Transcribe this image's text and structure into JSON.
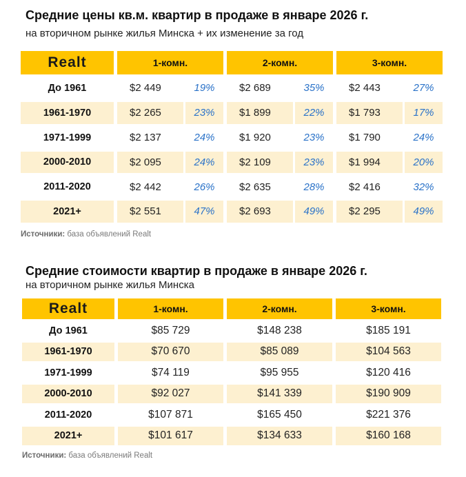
{
  "colors": {
    "accent": "#ffc400",
    "row_alt": "#fdf0d0",
    "percent": "#2a72c8"
  },
  "chart_data": [
    {
      "type": "table",
      "title": "Средние цены кв.м. квартир в продаже в январе 2026 г.",
      "subtitle": "на вторичном рынке жилья Минска + их изменение за год",
      "logo": "Realt",
      "columns": [
        "1-комн.",
        "2-комн.",
        "3-комн."
      ],
      "rows": [
        {
          "label": "До 1961",
          "values": [
            [
              "$2 449",
              "19%"
            ],
            [
              "$2 689",
              "35%"
            ],
            [
              "$2 443",
              "27%"
            ]
          ]
        },
        {
          "label": "1961-1970",
          "values": [
            [
              "$2 265",
              "23%"
            ],
            [
              "$1 899",
              "22%"
            ],
            [
              "$1 793",
              "17%"
            ]
          ]
        },
        {
          "label": "1971-1999",
          "values": [
            [
              "$2 137",
              "24%"
            ],
            [
              "$1 920",
              "23%"
            ],
            [
              "$1 790",
              "24%"
            ]
          ]
        },
        {
          "label": "2000-2010",
          "values": [
            [
              "$2 095",
              "24%"
            ],
            [
              "$2 109",
              "23%"
            ],
            [
              "$1 994",
              "20%"
            ]
          ]
        },
        {
          "label": "2011-2020",
          "values": [
            [
              "$2 442",
              "26%"
            ],
            [
              "$2 635",
              "28%"
            ],
            [
              "$2 416",
              "32%"
            ]
          ]
        },
        {
          "label": "2021+",
          "values": [
            [
              "$2 551",
              "47%"
            ],
            [
              "$2 693",
              "49%"
            ],
            [
              "$2 295",
              "49%"
            ]
          ]
        }
      ],
      "source_label": "Источники:",
      "source_text": " база объявлений Realt"
    },
    {
      "type": "table",
      "title": "Средние стоимости квартир в продаже в январе 2026 г.",
      "subtitle": "на вторичном рынке жилья Минска",
      "logo": "Realt",
      "columns": [
        "1-комн.",
        "2-комн.",
        "3-комн."
      ],
      "rows": [
        {
          "label": "До 1961",
          "values": [
            "$85 729",
            "$148 238",
            "$185 191"
          ]
        },
        {
          "label": "1961-1970",
          "values": [
            "$70 670",
            "$85 089",
            "$104 563"
          ]
        },
        {
          "label": "1971-1999",
          "values": [
            "$74 119",
            "$95 955",
            "$120 416"
          ]
        },
        {
          "label": "2000-2010",
          "values": [
            "$92 027",
            "$141 339",
            "$190 909"
          ]
        },
        {
          "label": "2011-2020",
          "values": [
            "$107 871",
            "$165 450",
            "$221 376"
          ]
        },
        {
          "label": "2021+",
          "values": [
            "$101 617",
            "$134 633",
            "$160 168"
          ]
        }
      ],
      "source_label": "Источники:",
      "source_text": " база объявлений Realt"
    }
  ]
}
